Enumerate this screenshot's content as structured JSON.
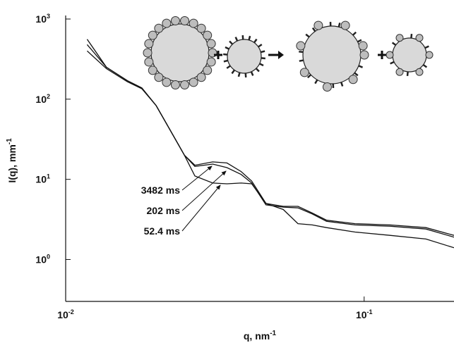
{
  "chart_data": {
    "type": "line",
    "x_label": "q, nm",
    "x_label_sup": "-1",
    "y_label": "I(q), mm",
    "y_label_sup": "-1",
    "xscale": "log",
    "yscale": "log",
    "xlim": [
      0.01,
      0.2
    ],
    "ylim": [
      0.3,
      1000
    ],
    "xticks": [
      {
        "value": 0.01,
        "label": "10",
        "sup": "-2"
      },
      {
        "value": 0.1,
        "label": "10",
        "sup": "-1"
      }
    ],
    "yticks": [
      {
        "value": 1,
        "label": "10",
        "sup": "0"
      },
      {
        "value": 10,
        "label": "10",
        "sup": "1"
      },
      {
        "value": 100,
        "label": "10",
        "sup": "2"
      },
      {
        "value": 1000,
        "label": "10",
        "sup": "3"
      }
    ],
    "x": [
      0.0118,
      0.0137,
      0.0161,
      0.018,
      0.0201,
      0.0224,
      0.025,
      0.0271,
      0.0311,
      0.0347,
      0.0387,
      0.042,
      0.0469,
      0.0536,
      0.06,
      0.067,
      0.0748,
      0.0932,
      0.122,
      0.161,
      0.2
    ],
    "series": [
      {
        "name": "3482 ms",
        "color": "#111111",
        "values": [
          560,
          250,
          170,
          138,
          83,
          41,
          20,
          15,
          16.5,
          16,
          12.5,
          9.5,
          5,
          4.6,
          4.6,
          3.8,
          3.1,
          2.8,
          2.7,
          2.5,
          2.0
        ]
      },
      {
        "name": "202 ms",
        "color": "#111111",
        "values": [
          480,
          250,
          170,
          138,
          83,
          41,
          20,
          14.5,
          15.5,
          14,
          11.5,
          9,
          4.8,
          4.5,
          4.4,
          3.7,
          3.0,
          2.7,
          2.6,
          2.4,
          1.9
        ]
      },
      {
        "name": "52.4 ms",
        "color": "#111111",
        "values": [
          400,
          240,
          165,
          135,
          83,
          41,
          20,
          11,
          9,
          8.8,
          9,
          8.8,
          5,
          4.2,
          2.8,
          2.7,
          2.5,
          2.2,
          2.0,
          1.8,
          1.4
        ]
      }
    ]
  }
}
